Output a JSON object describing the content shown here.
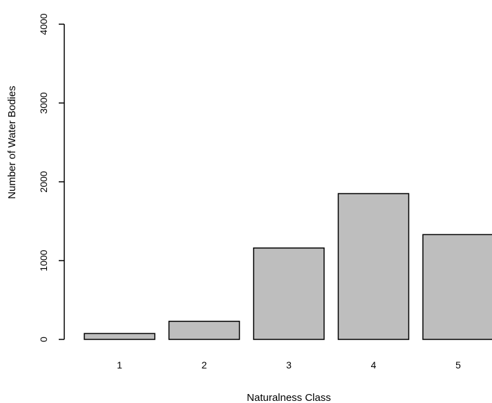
{
  "chart_data": {
    "type": "bar",
    "title": "",
    "xlabel": "Naturalness Class",
    "ylabel": "Number of Water Bodies",
    "categories": [
      "1",
      "2",
      "3",
      "4",
      "5"
    ],
    "values": [
      75,
      230,
      1160,
      1850,
      1330
    ],
    "ylim": [
      0,
      4000
    ],
    "yticks": [
      0,
      1000,
      2000,
      3000,
      4000
    ],
    "ytick_labels": [
      "0",
      "1000",
      "2000",
      "3000",
      "4000"
    ],
    "grid": false,
    "bar_color": "#bebebe",
    "bar_border_color": "#000000"
  }
}
